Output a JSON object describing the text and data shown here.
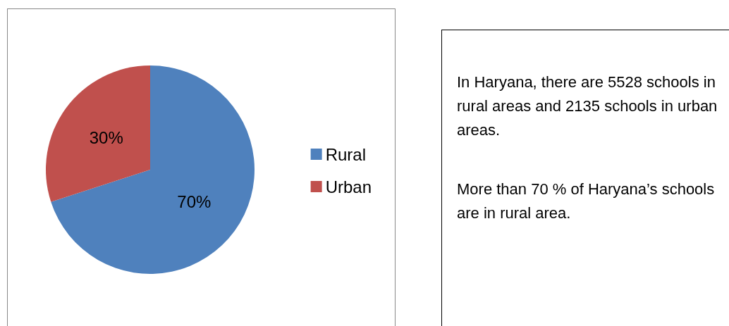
{
  "chart_data": [
    {
      "type": "pie",
      "categories": [
        "Rural",
        "Urban"
      ],
      "values": [
        70,
        30
      ],
      "colors": [
        "#4f81bd",
        "#c0504d"
      ],
      "value_labels": [
        "70%",
        "30%"
      ],
      "legend": "right"
    },
    {
      "type": "other",
      "annotations": [
        "In Haryana, there are 5528 schools in rural areas and 2135 schools in urban areas.",
        "More than 70 % of Haryana’s schools are in rural area."
      ]
    }
  ]
}
